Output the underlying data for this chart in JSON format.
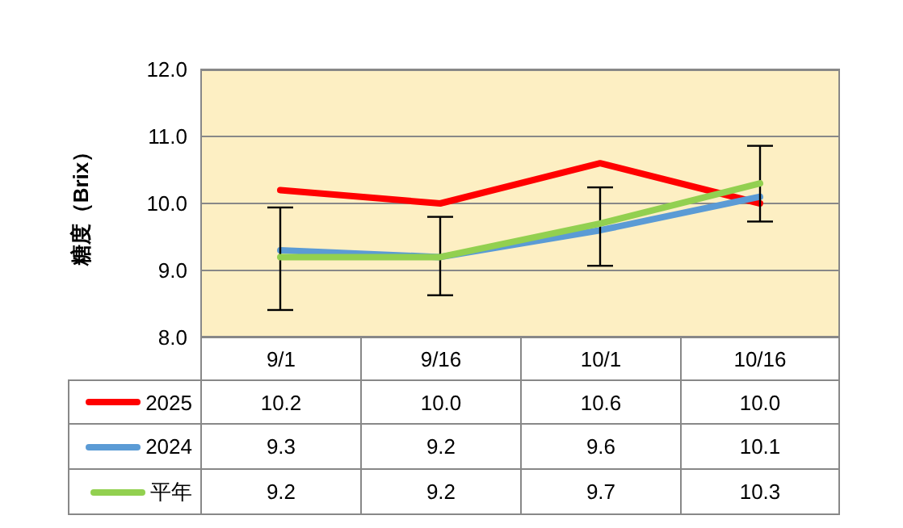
{
  "chart_data": {
    "type": "line",
    "ylabel": "糖度（Brix）",
    "categories": [
      "9/1",
      "9/16",
      "10/1",
      "10/16"
    ],
    "series": [
      {
        "name": "2025",
        "color": "#ff0000",
        "values": [
          10.2,
          10.0,
          10.6,
          10.0
        ],
        "value_labels": [
          "10.2",
          "10.0",
          "10.6",
          "10.0"
        ]
      },
      {
        "name": "2024",
        "color": "#5b9bd5",
        "values": [
          9.3,
          9.2,
          9.6,
          10.1
        ],
        "value_labels": [
          "9.3",
          "9.2",
          "9.6",
          "10.1"
        ]
      },
      {
        "name": "平年",
        "color": "#92d050",
        "values": [
          9.2,
          9.2,
          9.7,
          10.3
        ],
        "value_labels": [
          "9.2",
          "9.2",
          "9.7",
          "10.3"
        ],
        "errors": [
          [
            8.41,
            9.94
          ],
          [
            8.63,
            9.8
          ],
          [
            9.07,
            10.24
          ],
          [
            9.73,
            10.86
          ]
        ]
      }
    ],
    "ylim": [
      8,
      12
    ],
    "yticks": [
      {
        "value": 8,
        "label": "8.0"
      },
      {
        "value": 9,
        "label": "9.0"
      },
      {
        "value": 10,
        "label": "10.0"
      },
      {
        "value": 11,
        "label": "11.0"
      },
      {
        "value": 12,
        "label": "12.0"
      }
    ],
    "grid": "y",
    "legend": "bottom left",
    "marker": "none",
    "line_style": "solid"
  }
}
